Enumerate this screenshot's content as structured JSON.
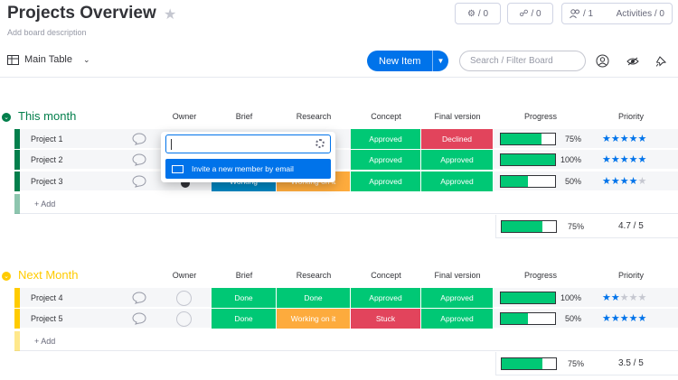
{
  "header": {
    "title": "Projects Overview",
    "description": "Add board description",
    "pill_a": "/ 0",
    "pill_b": "/ 0",
    "members": "/ 1",
    "activities": "Activities / 0"
  },
  "toolbar": {
    "view_label": "Main Table",
    "new_item_label": "New Item",
    "search_placeholder": "Search / Filter Board"
  },
  "columns": {
    "owner": "Owner",
    "brief": "Brief",
    "research": "Research",
    "concept": "Concept",
    "final": "Final version",
    "progress": "Progress",
    "priority": "Priority"
  },
  "colors": {
    "done": "#00c875",
    "working": "#fdab3d",
    "stuck": "#e2445c",
    "blue": "#0086c0",
    "group1": "#037f4c",
    "group2": "#ffcb00",
    "accent": "#0073ea"
  },
  "groups": [
    {
      "title": "This month",
      "add_label": "+ Add",
      "rows": [
        {
          "name": "Project 1",
          "concept": "Approved",
          "final": "Declined",
          "progress": 75,
          "progress_label": "75%",
          "rating": 5
        },
        {
          "name": "Project 2",
          "concept": "Approved",
          "final": "Approved",
          "progress": 100,
          "progress_label": "100%",
          "rating": 5
        },
        {
          "name": "Project 3",
          "brief": "Working",
          "research": "Working on it",
          "concept": "Approved",
          "final": "Approved",
          "progress": 50,
          "progress_label": "50%",
          "rating": 4
        }
      ],
      "summary_progress": 75,
      "summary_progress_label": "75%",
      "summary_rating": "4.7 / 5"
    },
    {
      "title": "Next Month",
      "add_label": "+ Add",
      "rows": [
        {
          "name": "Project 4",
          "brief": "Done",
          "research": "Done",
          "concept": "Approved",
          "final": "Approved",
          "progress": 100,
          "progress_label": "100%",
          "rating": 2
        },
        {
          "name": "Project 5",
          "brief": "Done",
          "research": "Working on it",
          "concept": "Stuck",
          "final": "Approved",
          "progress": 50,
          "progress_label": "50%",
          "rating": 5
        }
      ],
      "summary_progress": 75,
      "summary_progress_label": "75%",
      "summary_rating": "3.5 / 5"
    }
  ],
  "popup": {
    "invite_label": "Invite a new member by email"
  }
}
